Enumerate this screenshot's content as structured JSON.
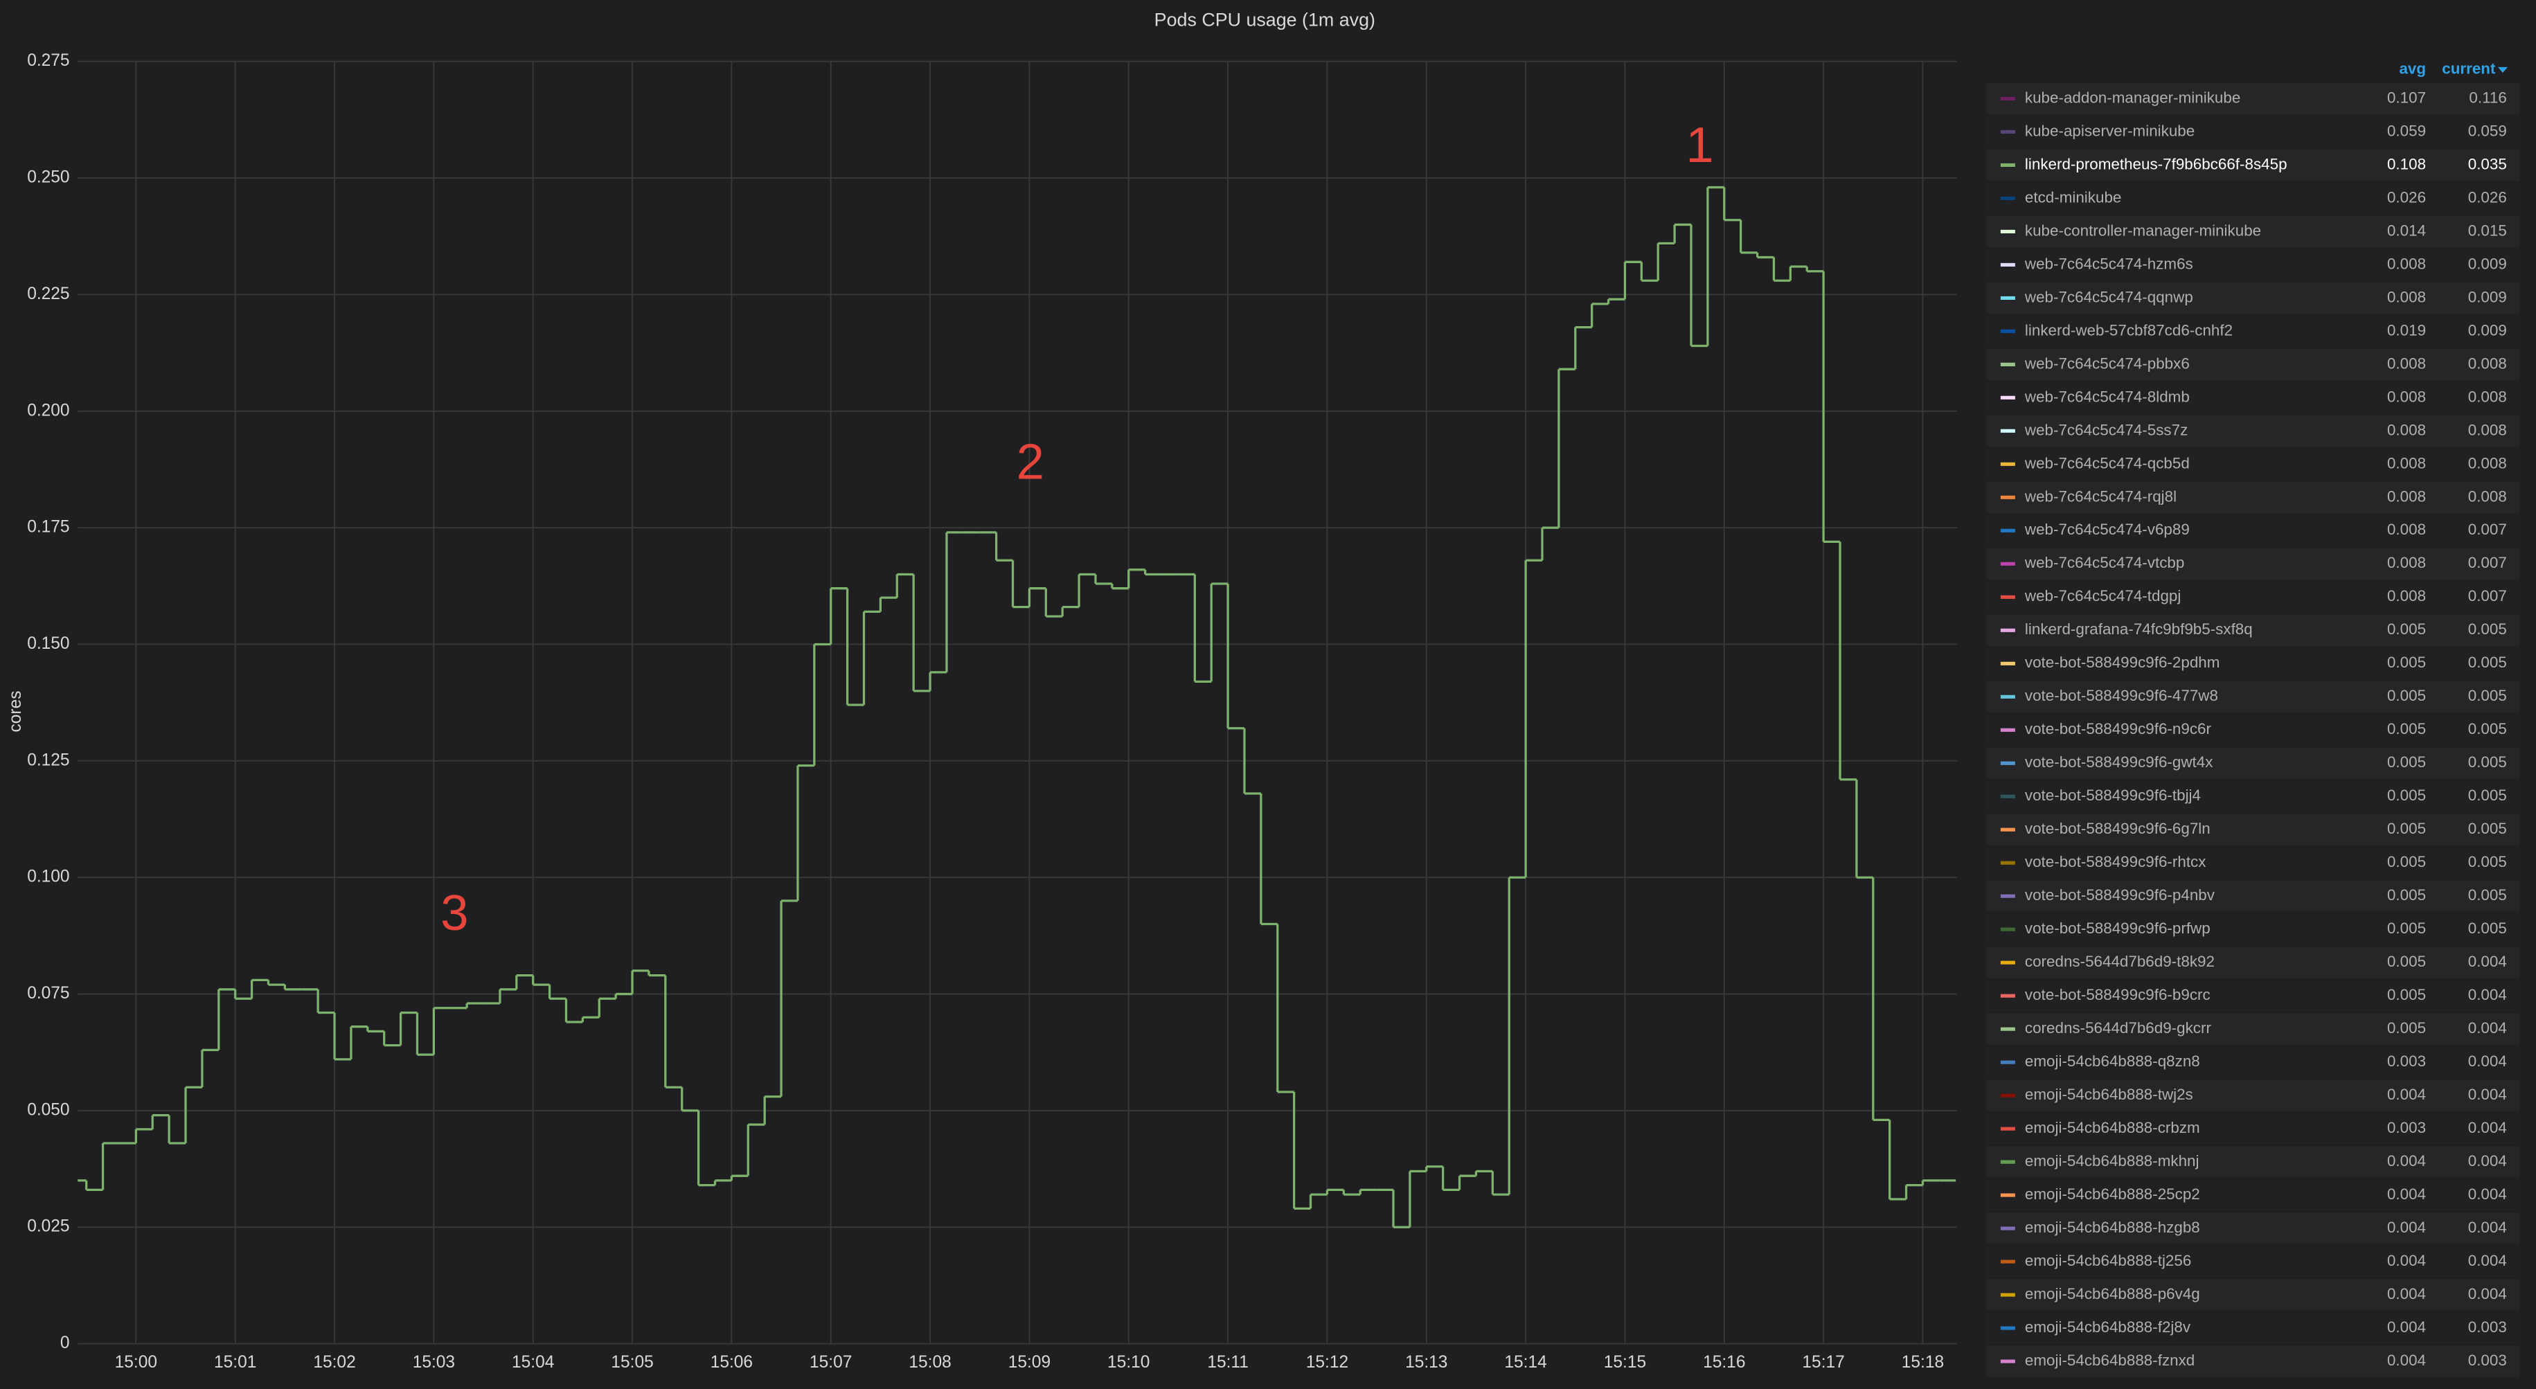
{
  "chart_data": {
    "type": "line",
    "title": "Pods CPU usage (1m avg)",
    "y_label": "cores",
    "step": true,
    "grid": true,
    "color": "#7eb26d",
    "ylim": [
      0,
      0.275
    ],
    "yticks": [
      0,
      0.025,
      {
        "value": 0.05,
        "label": "0.050"
      },
      0.075,
      {
        "value": 0.1,
        "label": "0.100"
      },
      0.125,
      {
        "value": 0.15,
        "label": "0.150"
      },
      0.175,
      {
        "value": 0.2,
        "label": "0.200"
      },
      0.225,
      {
        "value": 0.25,
        "label": "0.250"
      },
      0.275
    ],
    "categories": [
      null,
      null,
      null,
      null,
      "15:00",
      null,
      null,
      null,
      null,
      null,
      "15:01",
      null,
      null,
      null,
      null,
      null,
      "15:02",
      null,
      null,
      null,
      null,
      null,
      "15:03",
      null,
      null,
      null,
      null,
      null,
      "15:04",
      null,
      null,
      null,
      null,
      null,
      "15:05",
      null,
      null,
      null,
      null,
      null,
      "15:06",
      null,
      null,
      null,
      null,
      null,
      "15:07",
      null,
      null,
      null,
      null,
      null,
      "15:08",
      null,
      null,
      null,
      null,
      null,
      "15:09",
      null,
      null,
      null,
      null,
      null,
      "15:10",
      null,
      null,
      null,
      null,
      null,
      "15:11",
      null,
      null,
      null,
      null,
      null,
      "15:12",
      null,
      null,
      null,
      null,
      null,
      "15:13",
      null,
      null,
      null,
      null,
      null,
      "15:14",
      null,
      null,
      null,
      null,
      null,
      "15:15",
      null,
      null,
      null,
      null,
      null,
      "15:16",
      null,
      null,
      null,
      null,
      null,
      "15:17",
      null,
      null,
      null,
      null,
      null,
      "15:18",
      null
    ],
    "values": [
      0.035,
      0.033,
      0.043,
      0.043,
      0.046,
      0.049,
      0.043,
      0.055,
      0.063,
      0.076,
      0.074,
      0.078,
      0.077,
      0.076,
      0.076,
      0.071,
      0.061,
      0.068,
      0.067,
      0.064,
      0.071,
      0.062,
      0.072,
      0.072,
      0.073,
      0.073,
      0.076,
      0.079,
      0.077,
      0.074,
      0.069,
      0.07,
      0.074,
      0.075,
      0.08,
      0.079,
      0.055,
      0.05,
      0.034,
      0.035,
      0.036,
      0.047,
      0.053,
      0.095,
      0.124,
      0.15,
      0.162,
      0.137,
      0.157,
      0.16,
      0.165,
      0.14,
      0.144,
      0.174,
      0.174,
      0.174,
      0.168,
      0.158,
      0.162,
      0.156,
      0.158,
      0.165,
      0.163,
      0.162,
      0.166,
      0.165,
      0.165,
      0.165,
      0.142,
      0.163,
      0.132,
      0.118,
      0.09,
      0.054,
      0.029,
      0.032,
      0.033,
      0.032,
      0.033,
      0.033,
      0.025,
      0.037,
      0.038,
      0.033,
      0.036,
      0.037,
      0.032,
      0.1,
      0.168,
      0.175,
      0.209,
      0.218,
      0.223,
      0.224,
      0.232,
      0.228,
      0.236,
      0.24,
      0.214,
      0.248,
      0.241,
      0.234,
      0.233,
      0.228,
      0.231,
      0.23,
      0.172,
      0.121,
      0.1,
      0.048,
      0.031,
      0.034,
      0.035,
      0.035
    ],
    "annotations": [
      "1",
      "2",
      "3"
    ],
    "legend": {
      "columns": [
        "avg",
        "current"
      ],
      "rows": [
        {
          "name": "kube-addon-manager-minikube",
          "color": "#6d1f62",
          "avg": 0.107,
          "current": 0.116
        },
        {
          "name": "kube-apiserver-minikube",
          "color": "#584477",
          "avg": 0.059,
          "current": 0.059
        },
        {
          "name": "linkerd-prometheus-7f9b6bc66f-8s45p",
          "color": "#7eb26d",
          "avg": 0.108,
          "current": 0.035
        },
        {
          "name": "etcd-minikube",
          "color": "#0a437c",
          "avg": 0.026,
          "current": 0.026
        },
        {
          "name": "kube-controller-manager-minikube",
          "color": "#e0f9d7",
          "avg": 0.014,
          "current": 0.015
        },
        {
          "name": "web-7c64c5c474-hzm6s",
          "color": "#dedaf7",
          "avg": 0.008,
          "current": 0.009
        },
        {
          "name": "web-7c64c5c474-qqnwp",
          "color": "#70dbed",
          "avg": 0.008,
          "current": 0.009
        },
        {
          "name": "linkerd-web-57cbf87cd6-cnhf2",
          "color": "#0a50a1",
          "avg": 0.019,
          "current": 0.009
        },
        {
          "name": "web-7c64c5c474-pbbx6",
          "color": "#9ac48a",
          "avg": 0.008,
          "current": 0.008
        },
        {
          "name": "web-7c64c5c474-8ldmb",
          "color": "#f9d9f9",
          "avg": 0.008,
          "current": 0.008
        },
        {
          "name": "web-7c64c5c474-5ss7z",
          "color": "#cffaff",
          "avg": 0.008,
          "current": 0.008
        },
        {
          "name": "web-7c64c5c474-qcb5d",
          "color": "#eab839",
          "avg": 0.008,
          "current": 0.008
        },
        {
          "name": "web-7c64c5c474-rqj8l",
          "color": "#ef843c",
          "avg": 0.008,
          "current": 0.008
        },
        {
          "name": "web-7c64c5c474-v6p89",
          "color": "#1f78c1",
          "avg": 0.008,
          "current": 0.007
        },
        {
          "name": "web-7c64c5c474-vtcbp",
          "color": "#ba43a9",
          "avg": 0.008,
          "current": 0.007
        },
        {
          "name": "web-7c64c5c474-tdgpj",
          "color": "#e24d42",
          "avg": 0.008,
          "current": 0.007
        },
        {
          "name": "linkerd-grafana-74fc9bf9b5-sxf8q",
          "color": "#e5a8e2",
          "avg": 0.005,
          "current": 0.005
        },
        {
          "name": "vote-bot-588499c9f6-2pdhm",
          "color": "#f2c96d",
          "avg": 0.005,
          "current": 0.005
        },
        {
          "name": "vote-bot-588499c9f6-477w8",
          "color": "#65c5db",
          "avg": 0.005,
          "current": 0.005
        },
        {
          "name": "vote-bot-588499c9f6-n9c6r",
          "color": "#d683ce",
          "avg": 0.005,
          "current": 0.005
        },
        {
          "name": "vote-bot-588499c9f6-gwt4x",
          "color": "#5195ce",
          "avg": 0.005,
          "current": 0.005
        },
        {
          "name": "vote-bot-588499c9f6-tbjj4",
          "color": "#2f575e",
          "avg": 0.005,
          "current": 0.005
        },
        {
          "name": "vote-bot-588499c9f6-6g7ln",
          "color": "#f9934e",
          "avg": 0.005,
          "current": 0.005
        },
        {
          "name": "vote-bot-588499c9f6-rhtcx",
          "color": "#967302",
          "avg": 0.005,
          "current": 0.005
        },
        {
          "name": "vote-bot-588499c9f6-p4nbv",
          "color": "#806eb7",
          "avg": 0.005,
          "current": 0.005
        },
        {
          "name": "vote-bot-588499c9f6-prfwp",
          "color": "#3f6833",
          "avg": 0.005,
          "current": 0.005
        },
        {
          "name": "coredns-5644d7b6d9-t8k92",
          "color": "#e5ac0e",
          "avg": 0.005,
          "current": 0.004
        },
        {
          "name": "vote-bot-588499c9f6-b9crc",
          "color": "#ea6460",
          "avg": 0.005,
          "current": 0.004
        },
        {
          "name": "coredns-5644d7b6d9-gkcrr",
          "color": "#9ac48a",
          "avg": 0.005,
          "current": 0.004
        },
        {
          "name": "emoji-54cb64b888-q8zn8",
          "color": "#447ebc",
          "avg": 0.003,
          "current": 0.004
        },
        {
          "name": "emoji-54cb64b888-twj2s",
          "color": "#890f02",
          "avg": 0.004,
          "current": 0.004
        },
        {
          "name": "emoji-54cb64b888-crbzm",
          "color": "#e24d42",
          "avg": 0.003,
          "current": 0.004
        },
        {
          "name": "emoji-54cb64b888-mkhnj",
          "color": "#629e51",
          "avg": 0.004,
          "current": 0.004
        },
        {
          "name": "emoji-54cb64b888-25cp2",
          "color": "#f9934e",
          "avg": 0.004,
          "current": 0.004
        },
        {
          "name": "emoji-54cb64b888-hzgb8",
          "color": "#806eb7",
          "avg": 0.004,
          "current": 0.004
        },
        {
          "name": "emoji-54cb64b888-tj256",
          "color": "#c15c17",
          "avg": 0.004,
          "current": 0.004
        },
        {
          "name": "emoji-54cb64b888-p6v4g",
          "color": "#cca300",
          "avg": 0.004,
          "current": 0.004
        },
        {
          "name": "emoji-54cb64b888-f2j8v",
          "color": "#1f78c1",
          "avg": 0.004,
          "current": 0.003
        },
        {
          "name": "emoji-54cb64b888-fznxd",
          "color": "#d683ce",
          "avg": 0.004,
          "current": 0.003
        }
      ]
    }
  }
}
